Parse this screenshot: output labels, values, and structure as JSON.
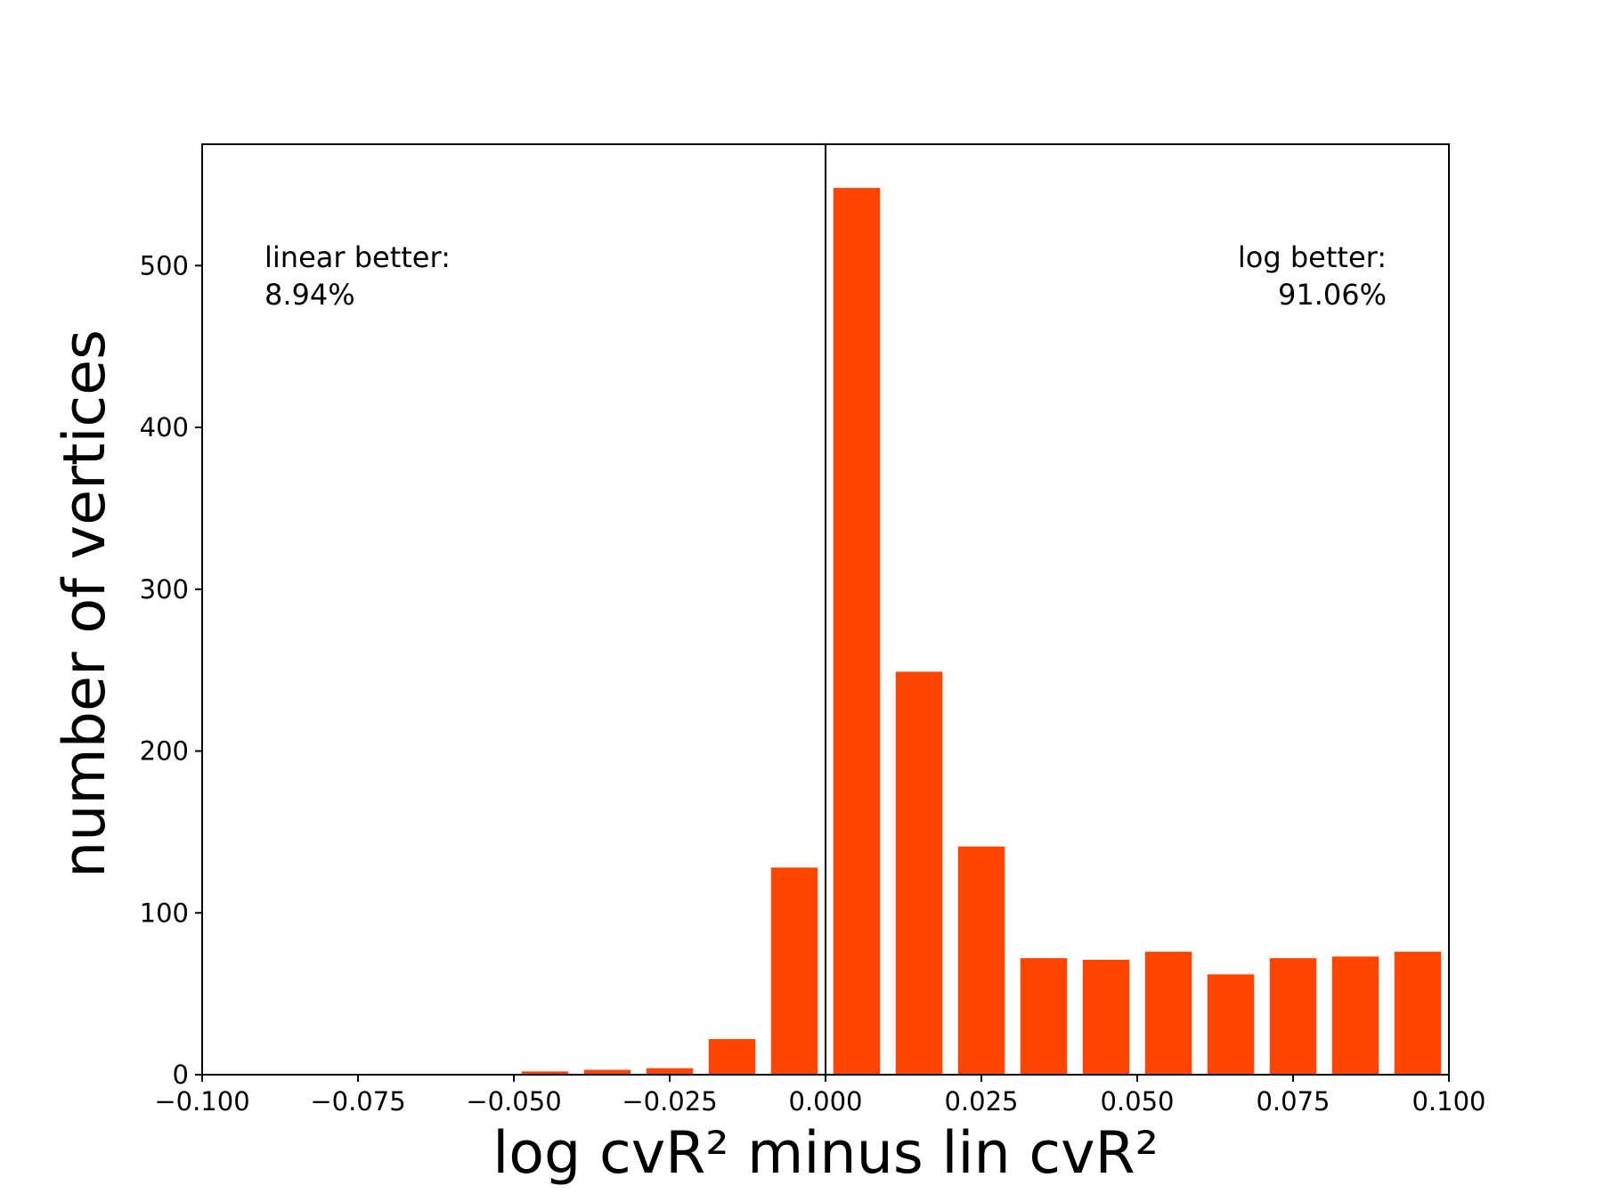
{
  "chart_data": {
    "type": "bar",
    "bar_color": "#ff4500",
    "bin_edges": [
      -0.1,
      -0.09,
      -0.08,
      -0.07,
      -0.06,
      -0.05,
      -0.04,
      -0.03,
      -0.02,
      -0.01,
      0.0,
      0.01,
      0.02,
      0.03,
      0.04,
      0.05,
      0.06,
      0.07,
      0.08,
      0.09,
      0.1
    ],
    "values": [
      0,
      0,
      0,
      0,
      0,
      2,
      3,
      4,
      22,
      128,
      548,
      249,
      141,
      72,
      71,
      76,
      62,
      72,
      73,
      76
    ],
    "xlabel": "log cvR² minus lin cvR²",
    "ylabel": "number of vertices",
    "xlim": [
      -0.1,
      0.1
    ],
    "ylim": [
      0,
      575
    ],
    "xticks": [
      -0.1,
      -0.075,
      -0.05,
      -0.025,
      0.0,
      0.025,
      0.05,
      0.075,
      0.1
    ],
    "xtick_labels": [
      "−0.100",
      "−0.075",
      "−0.050",
      "−0.025",
      "0.000",
      "0.025",
      "0.050",
      "0.075",
      "0.100"
    ],
    "yticks": [
      0,
      100,
      200,
      300,
      400,
      500
    ],
    "ytick_labels": [
      "0",
      "100",
      "200",
      "300",
      "400",
      "500"
    ],
    "reference_line_x": 0.0,
    "annotations": {
      "left_line1": "linear better:",
      "left_line2": "8.94%",
      "right_line1": "log better:",
      "right_line2": "91.06%"
    },
    "grid": false
  }
}
